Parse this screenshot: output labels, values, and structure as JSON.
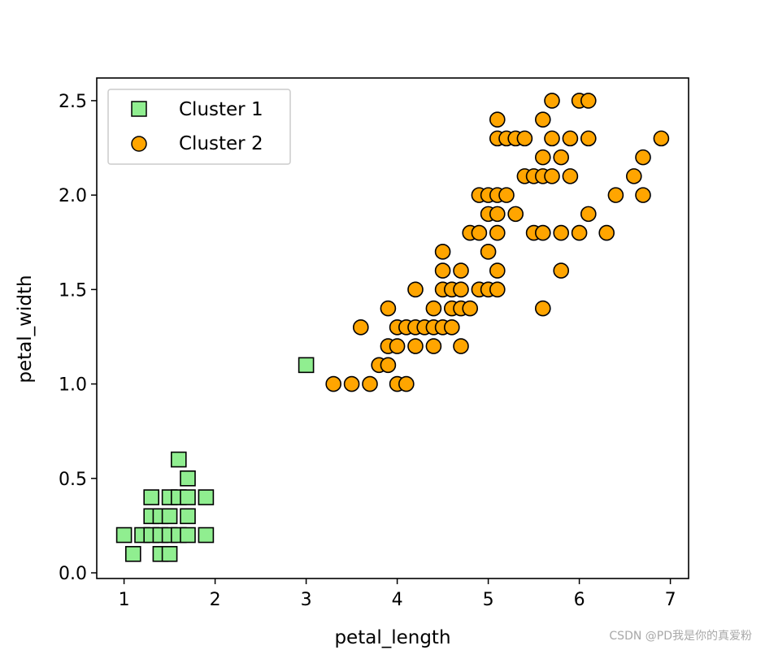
{
  "chart_data": {
    "type": "scatter",
    "xlabel": "petal_length",
    "ylabel": "petal_width",
    "xlim": [
      0.7,
      7.2
    ],
    "ylim": [
      -0.03,
      2.62
    ],
    "xticks": [
      1,
      2,
      3,
      4,
      5,
      6,
      7
    ],
    "xtick_labels": [
      "1",
      "2",
      "3",
      "4",
      "5",
      "6",
      "7"
    ],
    "yticks": [
      0.0,
      0.5,
      1.0,
      1.5,
      2.0,
      2.5
    ],
    "ytick_labels": [
      "0.0",
      "0.5",
      "1.0",
      "1.5",
      "2.0",
      "2.5"
    ],
    "grid": false,
    "legend": "upper-left",
    "series": [
      {
        "name": "Cluster 1",
        "marker": "square",
        "color": "#90ee90",
        "edgecolor": "#000000",
        "points": [
          [
            1.0,
            0.2
          ],
          [
            1.1,
            0.1
          ],
          [
            1.2,
            0.2
          ],
          [
            1.3,
            0.2
          ],
          [
            1.3,
            0.3
          ],
          [
            1.3,
            0.4
          ],
          [
            1.4,
            0.1
          ],
          [
            1.4,
            0.2
          ],
          [
            1.4,
            0.3
          ],
          [
            1.5,
            0.1
          ],
          [
            1.5,
            0.2
          ],
          [
            1.5,
            0.3
          ],
          [
            1.5,
            0.4
          ],
          [
            1.6,
            0.2
          ],
          [
            1.6,
            0.4
          ],
          [
            1.6,
            0.6
          ],
          [
            1.7,
            0.2
          ],
          [
            1.7,
            0.3
          ],
          [
            1.7,
            0.4
          ],
          [
            1.7,
            0.5
          ],
          [
            1.9,
            0.2
          ],
          [
            1.9,
            0.4
          ],
          [
            3.0,
            1.1
          ]
        ]
      },
      {
        "name": "Cluster 2",
        "marker": "circle",
        "color": "#ffa500",
        "edgecolor": "#000000",
        "points": [
          [
            3.3,
            1.0
          ],
          [
            3.5,
            1.0
          ],
          [
            3.6,
            1.3
          ],
          [
            3.7,
            1.0
          ],
          [
            3.8,
            1.1
          ],
          [
            3.9,
            1.1
          ],
          [
            3.9,
            1.2
          ],
          [
            3.9,
            1.4
          ],
          [
            4.0,
            1.0
          ],
          [
            4.0,
            1.2
          ],
          [
            4.0,
            1.3
          ],
          [
            4.1,
            1.0
          ],
          [
            4.1,
            1.3
          ],
          [
            4.2,
            1.2
          ],
          [
            4.2,
            1.3
          ],
          [
            4.2,
            1.5
          ],
          [
            4.3,
            1.3
          ],
          [
            4.4,
            1.2
          ],
          [
            4.4,
            1.3
          ],
          [
            4.4,
            1.4
          ],
          [
            4.5,
            1.3
          ],
          [
            4.5,
            1.5
          ],
          [
            4.5,
            1.6
          ],
          [
            4.5,
            1.7
          ],
          [
            4.6,
            1.3
          ],
          [
            4.6,
            1.4
          ],
          [
            4.6,
            1.5
          ],
          [
            4.7,
            1.2
          ],
          [
            4.7,
            1.4
          ],
          [
            4.7,
            1.5
          ],
          [
            4.7,
            1.6
          ],
          [
            4.8,
            1.4
          ],
          [
            4.8,
            1.8
          ],
          [
            4.9,
            1.5
          ],
          [
            4.9,
            1.8
          ],
          [
            4.9,
            2.0
          ],
          [
            5.0,
            1.5
          ],
          [
            5.0,
            1.7
          ],
          [
            5.0,
            1.9
          ],
          [
            5.0,
            2.0
          ],
          [
            5.1,
            1.5
          ],
          [
            5.1,
            1.6
          ],
          [
            5.1,
            1.8
          ],
          [
            5.1,
            1.9
          ],
          [
            5.1,
            2.0
          ],
          [
            5.1,
            2.3
          ],
          [
            5.1,
            2.4
          ],
          [
            5.2,
            2.0
          ],
          [
            5.2,
            2.3
          ],
          [
            5.3,
            1.9
          ],
          [
            5.3,
            2.3
          ],
          [
            5.4,
            2.1
          ],
          [
            5.4,
            2.3
          ],
          [
            5.5,
            1.8
          ],
          [
            5.5,
            2.1
          ],
          [
            5.6,
            1.4
          ],
          [
            5.6,
            1.8
          ],
          [
            5.6,
            2.1
          ],
          [
            5.6,
            2.2
          ],
          [
            5.6,
            2.4
          ],
          [
            5.7,
            2.1
          ],
          [
            5.7,
            2.3
          ],
          [
            5.7,
            2.5
          ],
          [
            5.8,
            1.6
          ],
          [
            5.8,
            1.8
          ],
          [
            5.8,
            2.2
          ],
          [
            5.9,
            2.1
          ],
          [
            5.9,
            2.3
          ],
          [
            6.0,
            1.8
          ],
          [
            6.0,
            2.5
          ],
          [
            6.1,
            1.9
          ],
          [
            6.1,
            2.3
          ],
          [
            6.1,
            2.5
          ],
          [
            6.3,
            1.8
          ],
          [
            6.4,
            2.0
          ],
          [
            6.6,
            2.1
          ],
          [
            6.7,
            2.0
          ],
          [
            6.7,
            2.2
          ],
          [
            6.9,
            2.3
          ]
        ]
      }
    ]
  },
  "watermark": "CSDN @PD我是你的真爱粉"
}
